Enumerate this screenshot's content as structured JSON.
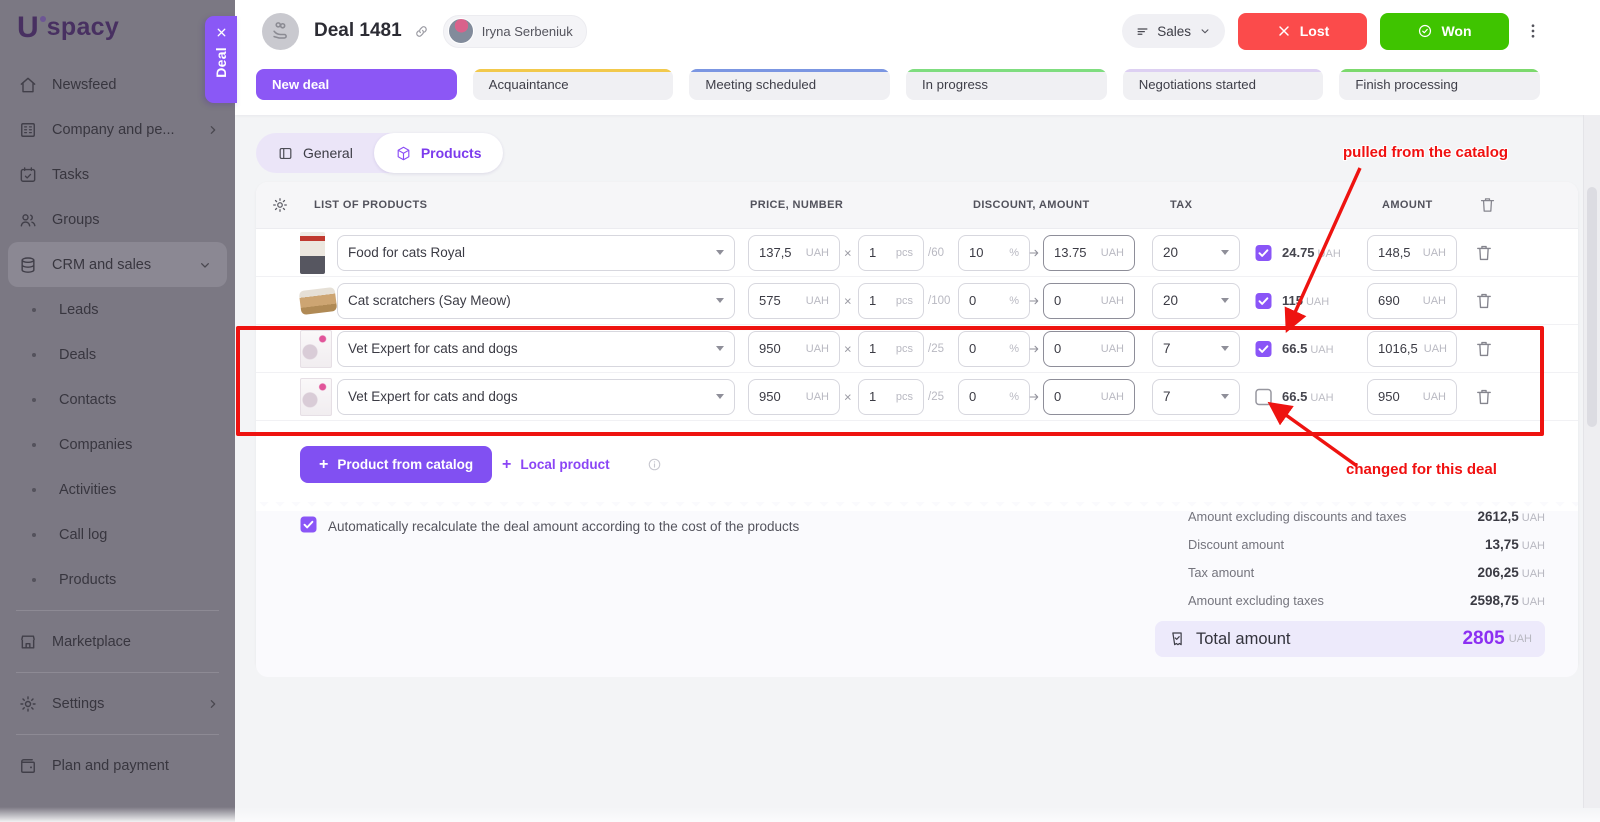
{
  "brand": {
    "logo_letter": "U",
    "logo_rest": "spacy"
  },
  "sidebar": {
    "items": [
      {
        "label": "Newsfeed",
        "icon": "home-icon"
      },
      {
        "label": "Company and pe...",
        "icon": "building-icon",
        "chevron": "right"
      },
      {
        "label": "Tasks",
        "icon": "calendar-icon"
      },
      {
        "label": "Groups",
        "icon": "people-icon"
      },
      {
        "label": "CRM and sales",
        "icon": "crm-icon",
        "chevron": "down",
        "active": true
      },
      {
        "label": "Leads",
        "bullet": true
      },
      {
        "label": "Deals",
        "bullet": true
      },
      {
        "label": "Contacts",
        "bullet": true
      },
      {
        "label": "Companies",
        "bullet": true
      },
      {
        "label": "Activities",
        "bullet": true
      },
      {
        "label": "Call log",
        "bullet": true
      },
      {
        "label": "Products",
        "bullet": true
      },
      {
        "label": "Marketplace",
        "icon": "store-icon",
        "divider_before": true
      },
      {
        "label": "Settings",
        "icon": "gear-icon",
        "chevron": "right",
        "divider_before": true
      },
      {
        "label": "Plan and payment",
        "icon": "wallet-icon",
        "divider_before": true
      }
    ]
  },
  "deal_side_tab": {
    "label": "Deal"
  },
  "header": {
    "title": "Deal 1481",
    "owner": "Iryna Serbeniuk",
    "funnel": "Sales",
    "lost": "Lost",
    "won": "Won"
  },
  "stages": [
    {
      "label": "New deal",
      "active": true,
      "accent": "#8c57f5"
    },
    {
      "label": "Acquaintance",
      "accent": "#f2c94c"
    },
    {
      "label": "Meeting scheduled",
      "accent": "#7b96e2"
    },
    {
      "label": "In progress",
      "accent": "#7fdd7f"
    },
    {
      "label": "Negotiations started",
      "accent": "#ddd0f2"
    },
    {
      "label": "Finish processing",
      "accent": "#7cd96d"
    }
  ],
  "tabs": [
    {
      "label": "General",
      "icon": "panel-icon"
    },
    {
      "label": "Products",
      "icon": "package-icon",
      "active": true
    }
  ],
  "products_table": {
    "columns": {
      "list": "LIST OF PRODUCTS",
      "price": "PRICE, NUMBER",
      "discount": "DISCOUNT, AMOUNT",
      "tax": "TAX",
      "amount": "AMOUNT"
    },
    "multiply_sign": "×",
    "rows": [
      {
        "product": "Food for cats Royal",
        "thumb": "royal",
        "price": "137,5",
        "price_unit": "UAH",
        "qty": "1",
        "qty_unit": "pcs",
        "stock": "/60",
        "discount_pct": "10",
        "pct_sign": "%",
        "discount_amt": "13.75",
        "discount_unit": "UAH",
        "tax_rate": "20",
        "tax_included": true,
        "tax_amt": "24.75",
        "tax_amt_unit": "UAH",
        "amount": "148,5",
        "amount_unit": "UAH"
      },
      {
        "product": "Cat scratchers (Say Meow)",
        "thumb": "scratcher",
        "price": "575",
        "price_unit": "UAH",
        "qty": "1",
        "qty_unit": "pcs",
        "stock": "/100",
        "discount_pct": "0",
        "pct_sign": "%",
        "discount_amt": "0",
        "discount_unit": "UAH",
        "tax_rate": "20",
        "tax_included": true,
        "tax_amt": "115",
        "tax_amt_unit": "UAH",
        "amount": "690",
        "amount_unit": "UAH"
      },
      {
        "product": "Vet Expert for cats and dogs",
        "thumb": "vet",
        "price": "950",
        "price_unit": "UAH",
        "qty": "1",
        "qty_unit": "pcs",
        "stock": "/25",
        "discount_pct": "0",
        "pct_sign": "%",
        "discount_amt": "0",
        "discount_unit": "UAH",
        "tax_rate": "7",
        "tax_included": true,
        "tax_amt": "66.5",
        "tax_amt_unit": "UAH",
        "amount": "1016,5",
        "amount_unit": "UAH"
      },
      {
        "product": "Vet Expert for cats and dogs",
        "thumb": "vet",
        "price": "950",
        "price_unit": "UAH",
        "qty": "1",
        "qty_unit": "pcs",
        "stock": "/25",
        "discount_pct": "0",
        "pct_sign": "%",
        "discount_amt": "0",
        "discount_unit": "UAH",
        "tax_rate": "7",
        "tax_included": false,
        "tax_amt": "66.5",
        "tax_amt_unit": "UAH",
        "amount": "950",
        "amount_unit": "UAH"
      }
    ]
  },
  "actions": {
    "plus": "+",
    "catalog": "Product from catalog",
    "local": "Local product"
  },
  "footer": {
    "auto_recalc": "Automatically recalculate the deal amount according to the cost of the products",
    "lines": [
      {
        "label": "Amount excluding discounts and taxes",
        "value": "2612,5",
        "unit": "UAH"
      },
      {
        "label": "Discount amount",
        "value": "13,75",
        "unit": "UAH"
      },
      {
        "label": "Tax amount",
        "value": "206,25",
        "unit": "UAH"
      },
      {
        "label": "Amount excluding taxes",
        "value": "2598,75",
        "unit": "UAH"
      }
    ],
    "total": {
      "label": "Total amount",
      "value": "2805",
      "unit": "UAH"
    }
  },
  "annotations": {
    "pulled": "pulled from the catalog",
    "changed": "changed for this deal",
    "color": "#ee1310"
  }
}
